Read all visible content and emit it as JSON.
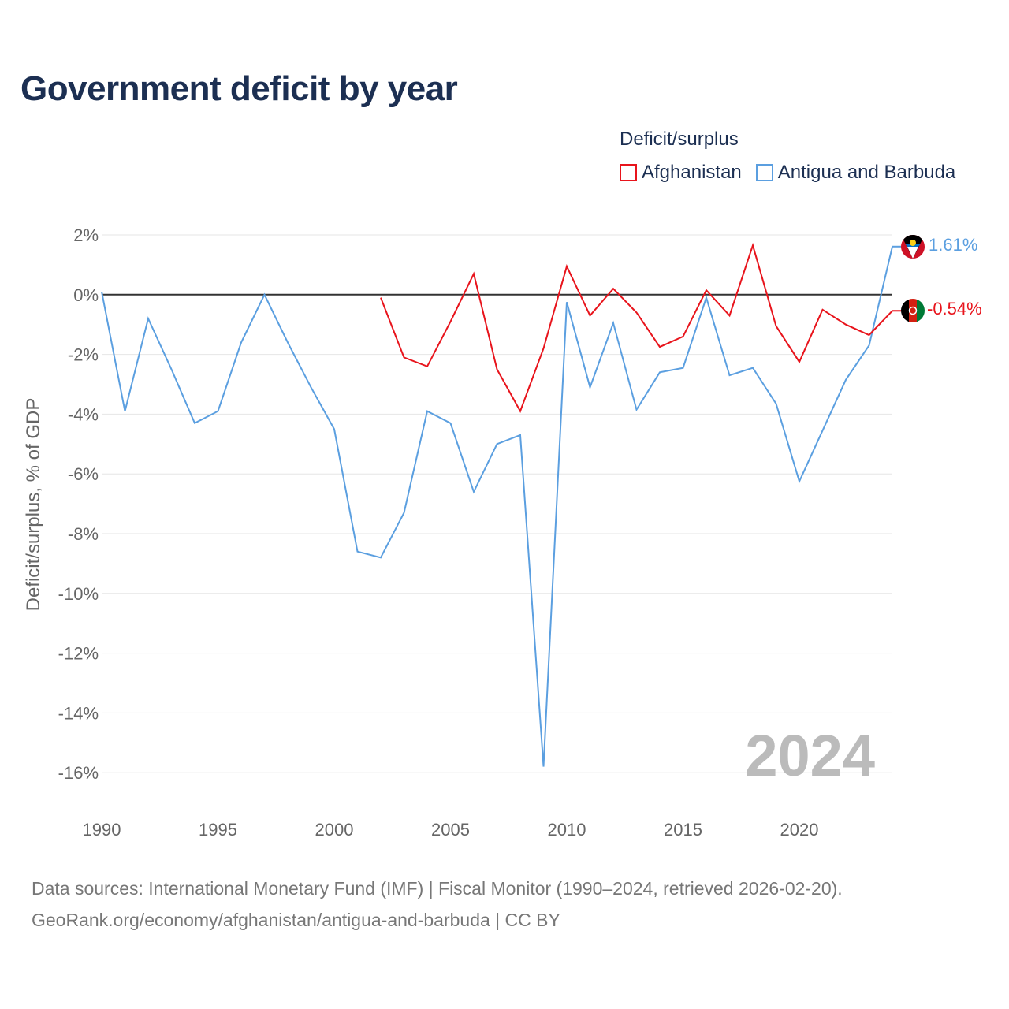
{
  "title": "Government deficit by year",
  "legend": {
    "title": "Deficit/surplus",
    "items": [
      {
        "label": "Afghanistan",
        "color": "#e8141c"
      },
      {
        "label": "Antigua and Barbuda",
        "color": "#5b9fe0"
      }
    ]
  },
  "watermark_year": "2024",
  "end_labels": {
    "afghanistan": "-0.54%",
    "antigua": "1.61%"
  },
  "footer": {
    "line1": "Data sources: International Monetary Fund (IMF) | Fiscal Monitor (1990–2024, retrieved 2026-02-20).",
    "line2": "GeoRank.org/economy/afghanistan/antigua-and-barbuda | CC BY"
  },
  "chart_data": {
    "type": "line",
    "title": "Government deficit by year",
    "xlabel": "",
    "ylabel": "Deficit/surplus, % of GDP",
    "xlim": [
      1990,
      2024
    ],
    "ylim": [
      -17,
      2
    ],
    "x_ticks": [
      1990,
      1995,
      2000,
      2005,
      2010,
      2015,
      2020
    ],
    "y_ticks": [
      2,
      0,
      -2,
      -4,
      -6,
      -8,
      -10,
      -12,
      -14,
      -16
    ],
    "y_tick_labels": [
      "2%",
      "0%",
      "-2%",
      "-4%",
      "-6%",
      "-8%",
      "-10%",
      "-12%",
      "-14%",
      "-16%"
    ],
    "x_tick_labels": [
      "1990",
      "1995",
      "2000",
      "2005",
      "2010",
      "2015",
      "2020"
    ],
    "zero_line": true,
    "series": [
      {
        "name": "Antigua and Barbuda",
        "color": "#5b9fe0",
        "x": [
          1990,
          1991,
          1992,
          1993,
          1994,
          1995,
          1996,
          1997,
          1998,
          1999,
          2000,
          2001,
          2002,
          2003,
          2004,
          2005,
          2006,
          2007,
          2008,
          2009,
          2010,
          2011,
          2012,
          2013,
          2014,
          2015,
          2016,
          2017,
          2018,
          2019,
          2020,
          2021,
          2022,
          2023,
          2024
        ],
        "values": [
          0.1,
          -3.9,
          -0.8,
          -2.5,
          -4.3,
          -3.9,
          -1.6,
          0.0,
          -1.6,
          -3.1,
          -4.5,
          -8.6,
          -8.8,
          -7.3,
          -3.9,
          -4.3,
          -6.6,
          -5.0,
          -4.7,
          -15.8,
          -0.25,
          -3.1,
          -0.95,
          -3.85,
          -2.6,
          -2.45,
          -0.1,
          -2.7,
          -2.45,
          -3.65,
          -6.25,
          -4.55,
          -2.85,
          -1.7,
          1.61
        ]
      },
      {
        "name": "Afghanistan",
        "color": "#e8141c",
        "x": [
          2002,
          2003,
          2004,
          2005,
          2006,
          2007,
          2008,
          2009,
          2010,
          2011,
          2012,
          2013,
          2014,
          2015,
          2016,
          2017,
          2018,
          2019,
          2020,
          2021,
          2022,
          2023,
          2024
        ],
        "values": [
          -0.1,
          -2.1,
          -2.4,
          -0.9,
          0.7,
          -2.5,
          -3.9,
          -1.8,
          0.95,
          -0.7,
          0.2,
          -0.6,
          -1.75,
          -1.4,
          0.15,
          -0.7,
          1.65,
          -1.05,
          -2.25,
          -0.5,
          -1.0,
          -1.35,
          -0.54
        ]
      }
    ]
  }
}
